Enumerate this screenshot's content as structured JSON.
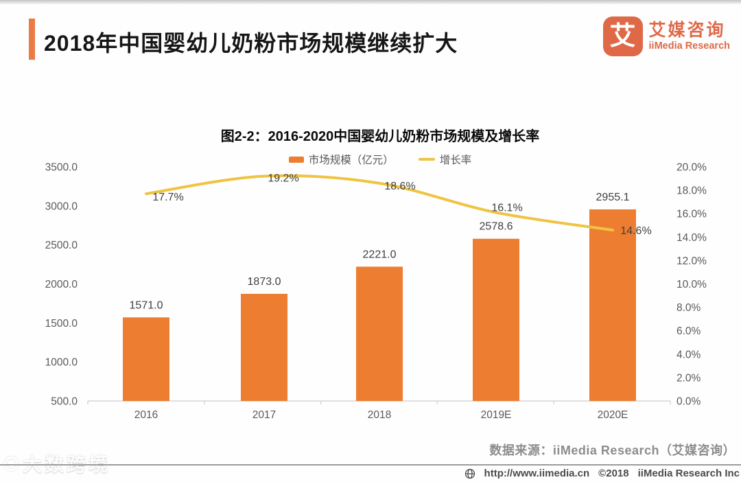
{
  "header": {
    "title": "2018年中国婴幼儿奶粉市场规模继续扩大"
  },
  "logo": {
    "glyph": "艾",
    "name_cn": "艾媒咨询",
    "name_en": "iiMedia Research"
  },
  "chart": {
    "title": "图2-2：2016-2020中国婴幼儿奶粉市场规模及增长率"
  },
  "chart_data": {
    "type": "bar+line combo",
    "title": "图2-2：2016-2020中国婴幼儿奶粉市场规模及增长率",
    "categories": [
      "2016",
      "2017",
      "2018",
      "2019E",
      "2020E"
    ],
    "series": [
      {
        "name": "市场规模（亿元）",
        "type": "bar",
        "axis": "left",
        "color": "#ED7D31",
        "values": [
          1571.0,
          1873.0,
          2221.0,
          2578.6,
          2955.1
        ],
        "labels": [
          "1571.0",
          "1873.0",
          "2221.0",
          "2578.6",
          "2955.1"
        ]
      },
      {
        "name": "增长率",
        "type": "line",
        "axis": "right",
        "color": "#EFC343",
        "values": [
          17.7,
          19.2,
          18.6,
          16.1,
          14.6
        ],
        "labels": [
          "17.7%",
          "19.2%",
          "18.6%",
          "16.1%",
          "14.6%"
        ]
      }
    ],
    "left_axis": {
      "min": 500,
      "max": 3500,
      "step": 500,
      "tick_labels": [
        "3500.0",
        "3000.0",
        "2500.0",
        "2000.0",
        "1500.0",
        "1000.0",
        "500.0"
      ]
    },
    "right_axis": {
      "min": 0,
      "max": 20,
      "step": 2,
      "tick_labels": [
        "20.0%",
        "18.0%",
        "16.0%",
        "14.0%",
        "12.0%",
        "10.0%",
        "8.0%",
        "6.0%",
        "4.0%",
        "2.0%",
        "0.0%"
      ]
    },
    "grid": false,
    "legend_position": "top"
  },
  "source": {
    "text": "数据来源：iiMedia Research（艾媒咨询）"
  },
  "footer": {
    "url": "http://www.iimedia.cn",
    "copyright": "©2018",
    "company": "iiMedia Research Inc"
  },
  "watermark": {
    "text": "大数跨境"
  },
  "colors": {
    "accent": "#EB7B45",
    "bar": "#ED7D31",
    "line": "#EFC343",
    "logo": "#DF6847"
  }
}
